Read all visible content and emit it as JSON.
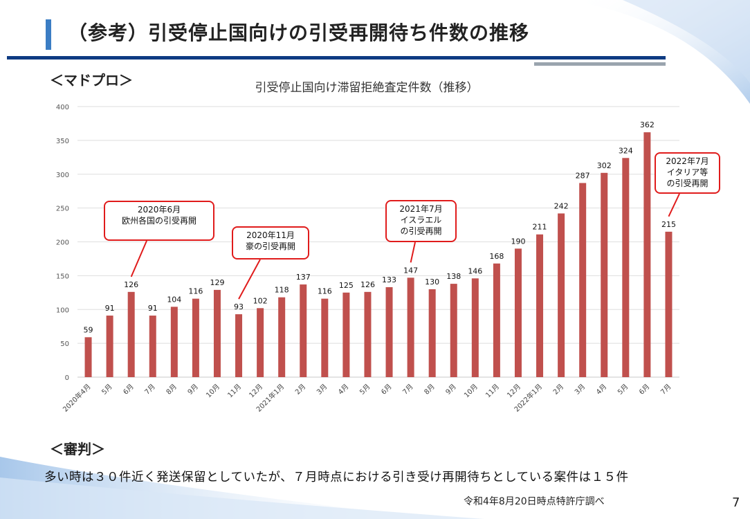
{
  "page": {
    "title": "（参考）引受停止国向けの引受再開待ち件数の推移",
    "section_madopro": "＜マドプロ＞",
    "section_shinpan": "＜審判＞",
    "bottom_text": "多い時は３０件近く発送保留としていたが、７月時点における引き受け再開待ちとしている案件は１５件",
    "source": "令和4年8月20日時点特許庁調べ",
    "page_number": "7",
    "colors": {
      "accent_bar": "#3b7dc4",
      "rule_main": "#0e3b82",
      "rule_grey": "#9aa4ae",
      "bar": "#c0504d",
      "callout_border": "#e01b1b"
    }
  },
  "callouts": {
    "c1": {
      "line1": "2020年6月",
      "line2": "欧州各国の引受再開"
    },
    "c2": {
      "line1": "2020年11月",
      "line2": "豪の引受再開"
    },
    "c3": {
      "line1": "2021年7月",
      "line2": "イスラエル",
      "line3": "の引受再開"
    },
    "c4": {
      "line1": "2022年7月",
      "line2": "イタリア等",
      "line3": "の引受再開"
    }
  },
  "chart_data": {
    "type": "bar",
    "title": "引受停止国向け滞留拒絶査定件数（推移）",
    "categories": [
      "2020年4月",
      "5月",
      "6月",
      "7月",
      "8月",
      "9月",
      "10月",
      "11月",
      "12月",
      "2021年1月",
      "2月",
      "3月",
      "4月",
      "5月",
      "6月",
      "7月",
      "8月",
      "9月",
      "10月",
      "11月",
      "12月",
      "2022年1月",
      "2月",
      "3月",
      "4月",
      "5月",
      "6月",
      "7月"
    ],
    "values": [
      59,
      91,
      126,
      91,
      104,
      116,
      129,
      93,
      102,
      118,
      137,
      116,
      125,
      126,
      133,
      147,
      130,
      138,
      146,
      168,
      190,
      211,
      242,
      287,
      302,
      324,
      362,
      215
    ],
    "ylim": [
      0,
      400
    ],
    "yticks": [
      0,
      50,
      100,
      150,
      200,
      250,
      300,
      350,
      400
    ],
    "grid": true,
    "data_labels": true,
    "bar_color": "#c0504d"
  }
}
